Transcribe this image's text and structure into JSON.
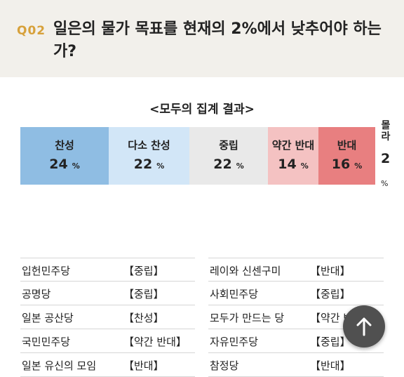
{
  "question": {
    "number": "Q02",
    "text": "일은의 물가 목표를 현재의 2%에서 낮추어야 하는가?"
  },
  "results": {
    "title": "<모두의 집계 결과>",
    "unit": "%",
    "segments": [
      {
        "label": "찬성",
        "value": "24",
        "color": "#8fbde3"
      },
      {
        "label": "다소 찬성",
        "value": "22",
        "color": "#d2e6f7"
      },
      {
        "label": "중립",
        "value": "22",
        "color": "#e9e9e9"
      },
      {
        "label": "약간 반대",
        "value": "14",
        "color": "#f4c2c2"
      },
      {
        "label": "반대",
        "value": "16",
        "color": "#e87f80"
      },
      {
        "label": "몰라",
        "value": "2",
        "color": "#ffffff"
      }
    ]
  },
  "parties": {
    "left": [
      {
        "name": "입헌민주당",
        "stance": "【중립】"
      },
      {
        "name": "공명당",
        "stance": "【중립】"
      },
      {
        "name": "일본 공산당",
        "stance": "【찬성】"
      },
      {
        "name": "국민민주당",
        "stance": "【약간 반대】"
      },
      {
        "name": "일본 유신의 모임",
        "stance": "【반대】"
      }
    ],
    "right": [
      {
        "name": "레이와 신센구미",
        "stance": "【반대】"
      },
      {
        "name": "사회민주당",
        "stance": "【중립】"
      },
      {
        "name": "모두가 만드는 당",
        "stance": "【약간 반대】"
      },
      {
        "name": "자유민주당",
        "stance": "【중립】"
      },
      {
        "name": "참정당",
        "stance": "【반대】"
      }
    ]
  },
  "scroll_top": {
    "icon": "arrow-up-icon"
  }
}
